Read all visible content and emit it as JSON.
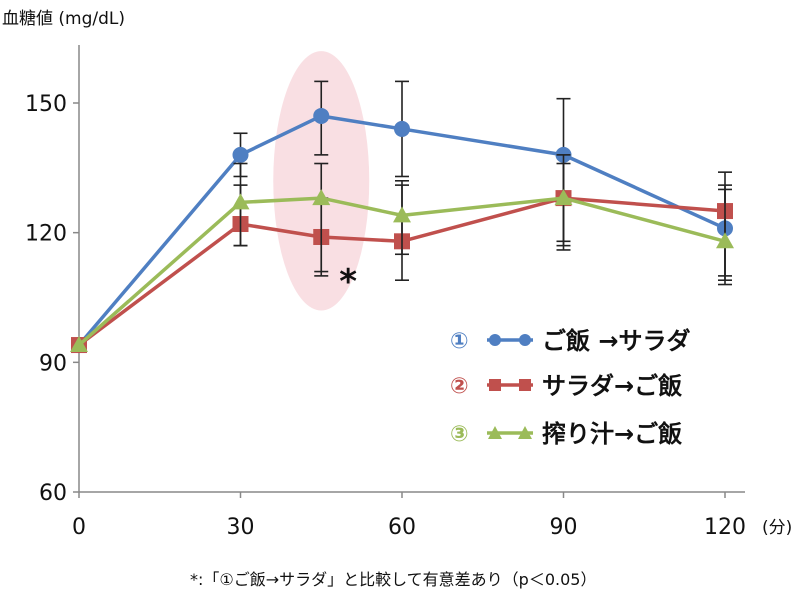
{
  "chart_data": {
    "type": "line",
    "ylabel": "血糖値 (mg/dL)",
    "xlabel": "(分)",
    "x": [
      0,
      30,
      45,
      60,
      90,
      120
    ],
    "x_ticks": [
      0,
      30,
      60,
      90,
      120
    ],
    "y_ticks": [
      60,
      90,
      120,
      150
    ],
    "xlim": [
      0,
      120
    ],
    "ylim": [
      60,
      160
    ],
    "grid": false,
    "legend_position": "center-right",
    "highlight": {
      "x": 45,
      "y_range": [
        102,
        162
      ],
      "color": "#f9dfe3"
    },
    "significance_marker": {
      "text": "*",
      "x": 45
    },
    "series": [
      {
        "name": "ご飯 →サラダ",
        "legend_number": "①",
        "color": "#4f7fc2",
        "marker": "circle",
        "y": [
          94,
          138,
          147,
          144,
          138,
          121
        ],
        "err_low": [
          94,
          133,
          138,
          133,
          116,
          109
        ],
        "err_high": [
          94,
          143,
          155,
          155,
          151,
          134
        ]
      },
      {
        "name": "サラダ→ご飯",
        "legend_number": "②",
        "color": "#c0504d",
        "marker": "square",
        "y": [
          94,
          122,
          119,
          118,
          128,
          125
        ],
        "err_low": [
          94,
          117,
          111,
          109,
          118,
          108
        ],
        "err_high": [
          94,
          131,
          128,
          131,
          138,
          131
        ]
      },
      {
        "name": "搾り汁→ご飯",
        "legend_number": "③",
        "color": "#9bbb59",
        "marker": "triangle",
        "y": [
          94,
          127,
          128,
          124,
          128,
          118
        ],
        "err_low": [
          94,
          117,
          110,
          115,
          117,
          110
        ],
        "err_high": [
          94,
          136,
          136,
          132,
          136,
          130
        ]
      }
    ],
    "footnote": "*:「①ご飯→サラダ」と比較して有意差あり（p＜0.05）"
  }
}
